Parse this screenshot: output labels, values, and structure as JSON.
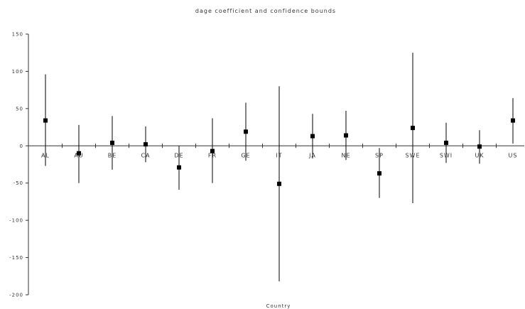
{
  "chart_data": {
    "type": "scatter",
    "title": "dage coefficient and confidence bounds",
    "xlabel": "Country",
    "ylabel": "",
    "ylim": [
      -200,
      150
    ],
    "yticks": [
      -200,
      -150,
      -100,
      -50,
      0,
      50,
      100,
      150
    ],
    "ytick_labels": [
      "-200",
      "-150",
      "-100",
      "-50",
      "0",
      "50",
      "100",
      "150"
    ],
    "categories": [
      "AL",
      "AU",
      "BE",
      "CA",
      "DE",
      "FR",
      "GE",
      "IT",
      "JA",
      "NE",
      "SP",
      "SWE",
      "SWI",
      "UK",
      "US"
    ],
    "series": [
      {
        "values": [
          34,
          -10,
          4,
          2,
          -29,
          -7,
          19,
          -51,
          13,
          14,
          -37,
          24,
          4,
          -1,
          34
        ],
        "lower": [
          -27,
          -50,
          -32,
          -22,
          -59,
          -50,
          -20,
          -182,
          -17,
          -19,
          -70,
          -77,
          -23,
          -24,
          3
        ],
        "upper": [
          96,
          28,
          40,
          26,
          0,
          37,
          58,
          80,
          43,
          47,
          -3,
          125,
          31,
          21,
          64
        ]
      }
    ],
    "grid": false,
    "legend": "none",
    "colors": {
      "axis": "#333333",
      "marker": "#000000",
      "text": "#333333"
    }
  }
}
